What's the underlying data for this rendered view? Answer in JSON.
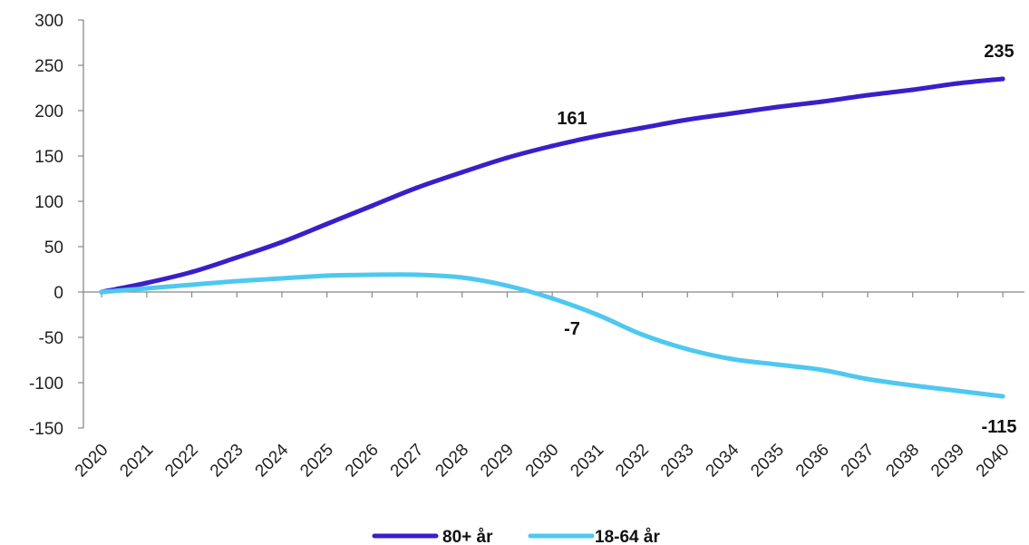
{
  "chart_data": {
    "type": "line",
    "title": "",
    "xlabel": "",
    "ylabel": "",
    "categories": [
      "2020",
      "2021",
      "2022",
      "2023",
      "2024",
      "2025",
      "2026",
      "2027",
      "2028",
      "2029",
      "2030",
      "2031",
      "2032",
      "2033",
      "2034",
      "2035",
      "2036",
      "2037",
      "2038",
      "2039",
      "2040"
    ],
    "yticks": [
      300,
      250,
      200,
      150,
      100,
      50,
      0,
      -50,
      -100,
      -150
    ],
    "ylim": [
      -150,
      300
    ],
    "grid": false,
    "legend_position": "bottom-center",
    "series": [
      {
        "name": "80+ år",
        "color": "#3A1FC8",
        "values": [
          0,
          10,
          22,
          38,
          55,
          75,
          95,
          115,
          132,
          148,
          161,
          172,
          181,
          190,
          197,
          204,
          210,
          217,
          223,
          230,
          235
        ]
      },
      {
        "name": "18-64 år",
        "color": "#4FC8F0",
        "values": [
          0,
          4,
          8,
          12,
          15,
          18,
          19,
          19,
          16,
          7,
          -7,
          -25,
          -47,
          -63,
          -74,
          -80,
          -86,
          -96,
          -103,
          -109,
          -115
        ]
      }
    ],
    "data_labels": [
      {
        "series": 0,
        "index": 10,
        "text": "161",
        "placement": "above"
      },
      {
        "series": 0,
        "index": 20,
        "text": "235",
        "placement": "above"
      },
      {
        "series": 1,
        "index": 10,
        "text": "-7",
        "placement": "below"
      },
      {
        "series": 1,
        "index": 20,
        "text": "-115",
        "placement": "below"
      }
    ]
  }
}
